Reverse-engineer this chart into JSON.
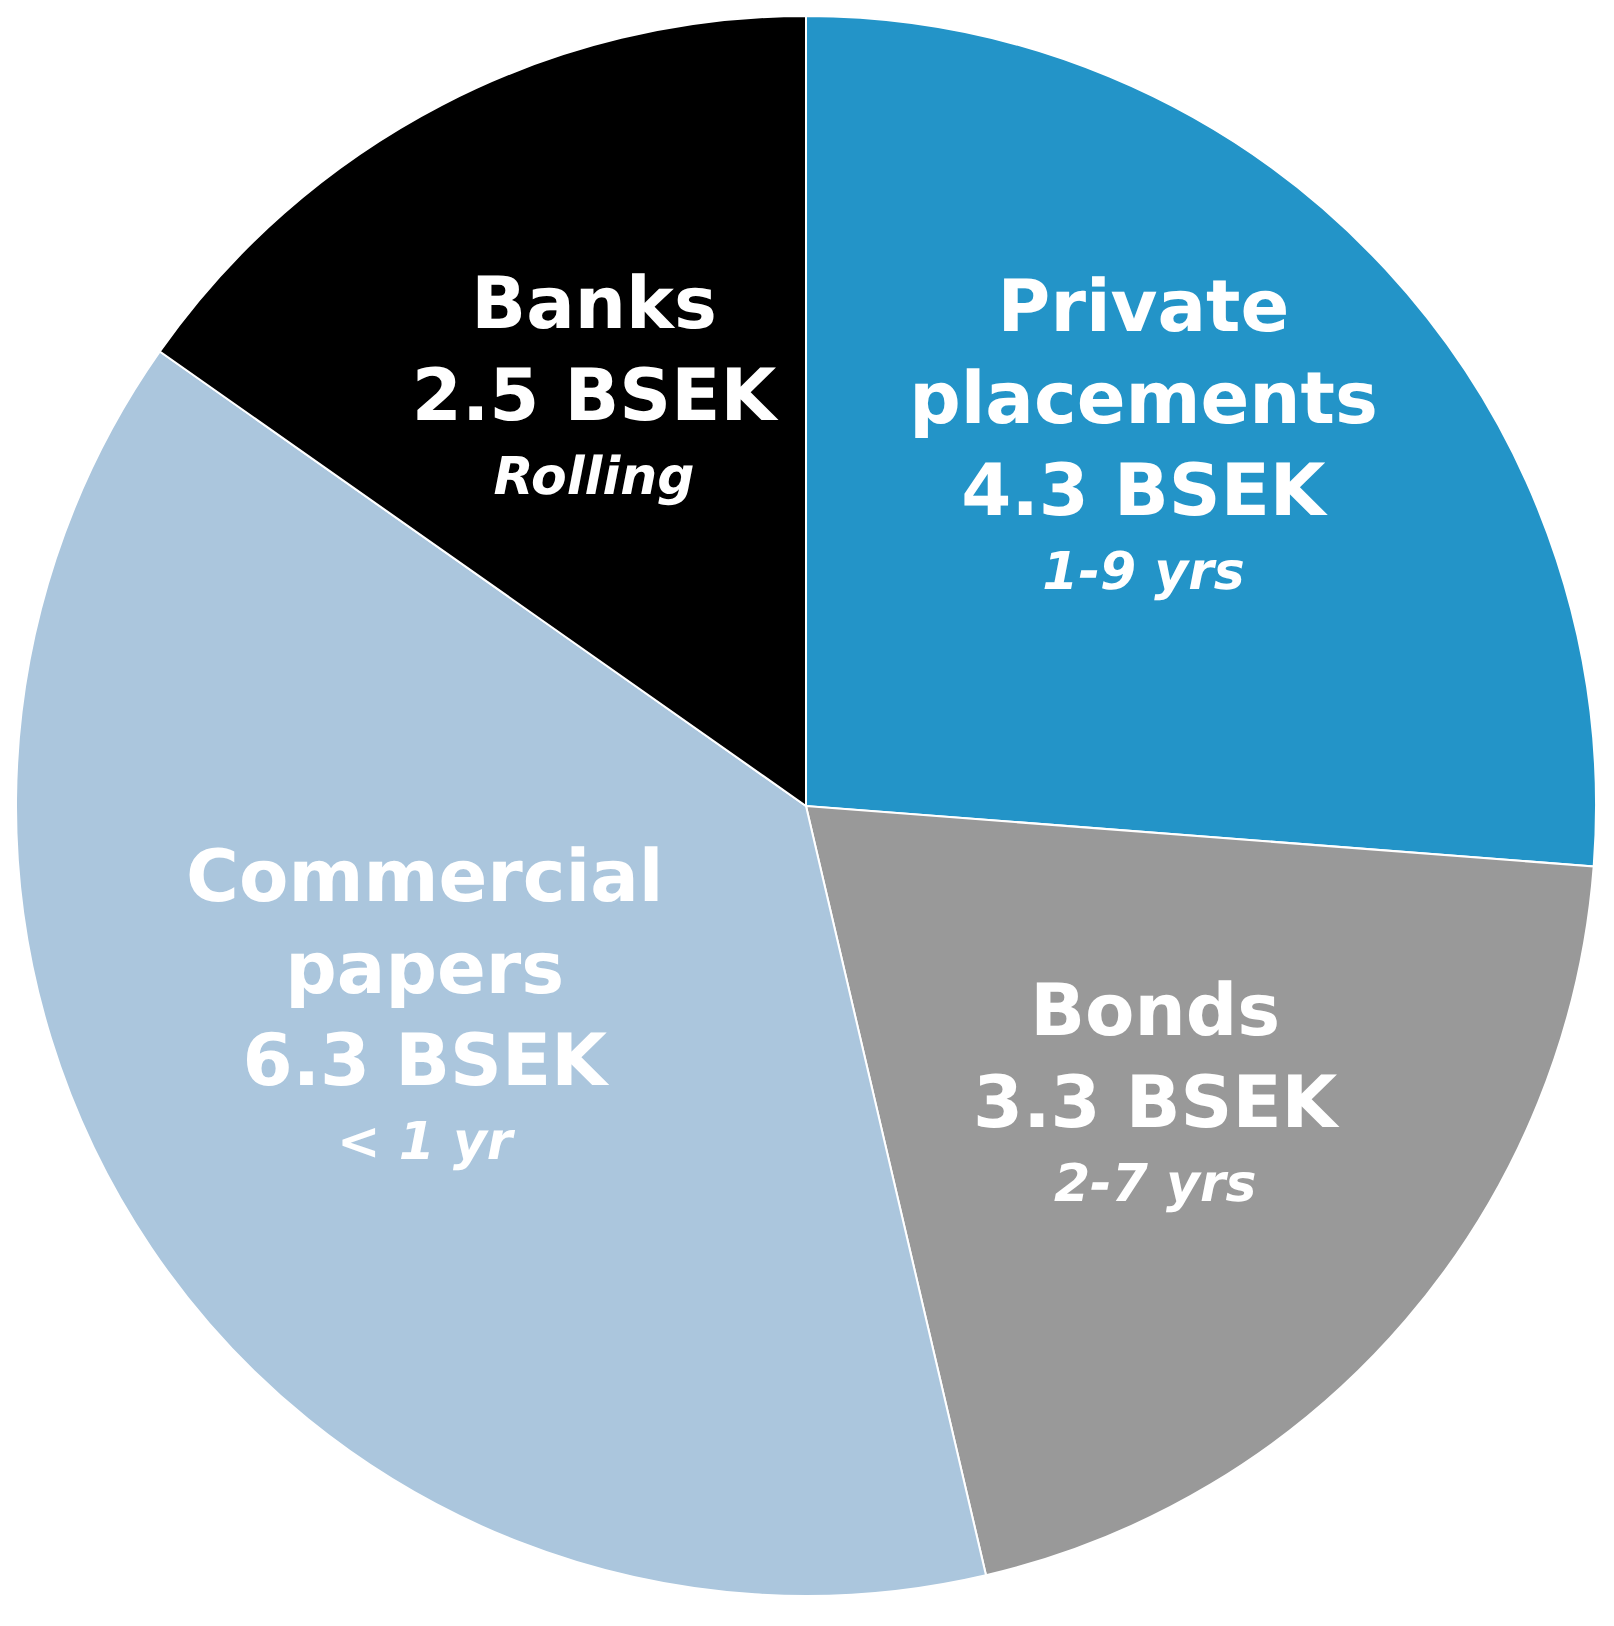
{
  "chart_data": {
    "type": "pie",
    "categories": [
      "Private placements",
      "Bonds",
      "Commercial papers",
      "Banks"
    ],
    "values": [
      4.3,
      3.3,
      6.3,
      2.5
    ],
    "value_labels": [
      "4.3 BSEK",
      "3.3 BSEK",
      "6.3 BSEK",
      "2.5 BSEK"
    ],
    "colors": [
      "#2394c8",
      "#999999",
      "#abc6dd",
      "#000000"
    ],
    "annotations": [
      {
        "text": "1-9 yrs",
        "x": "Private placements"
      },
      {
        "text": "2-7 yrs",
        "x": "Bonds"
      },
      {
        "text": "< 1 yr",
        "x": "Commercial papers"
      },
      {
        "text": "Rolling",
        "x": "Banks"
      }
    ],
    "legend": false
  }
}
